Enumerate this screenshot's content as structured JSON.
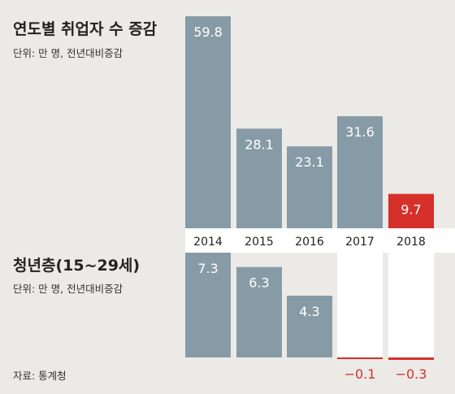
{
  "colors": {
    "background": "#ebeae6",
    "bar": "#879ba7",
    "highlight": "#d6302a",
    "band": "#ffffff"
  },
  "chart_data": [
    {
      "type": "bar",
      "title": "연도별 취업자 수 증감",
      "unit": "단위: 만 명, 전년대비증감",
      "categories": [
        "2014",
        "2015",
        "2016",
        "2017",
        "2018"
      ],
      "values": [
        59.8,
        28.1,
        23.1,
        31.6,
        9.7
      ],
      "labels": [
        "59.8",
        "28.1",
        "23.1",
        "31.6",
        "9.7"
      ],
      "highlight_index": 4
    },
    {
      "type": "bar",
      "title": "청년층(15~29세)",
      "unit": "단위: 만 명, 전년대비증감",
      "categories": [
        "2014",
        "2015",
        "2016",
        "2017",
        "2018"
      ],
      "values": [
        7.3,
        6.3,
        4.3,
        -0.1,
        -0.3
      ],
      "labels": [
        "7.3",
        "6.3",
        "4.3",
        "−0.1",
        "−0.3"
      ]
    }
  ],
  "source": "자료: 통계청"
}
